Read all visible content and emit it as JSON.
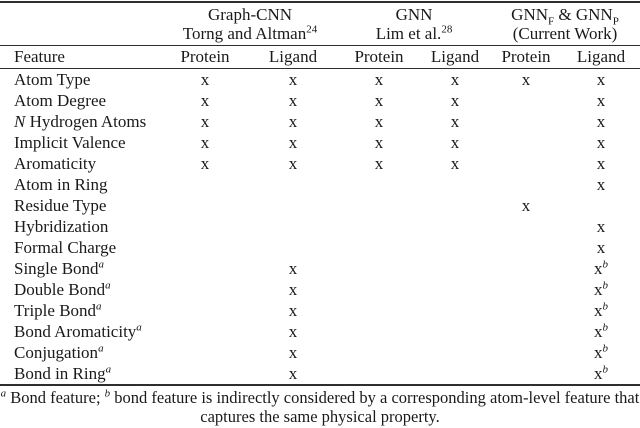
{
  "colors": {
    "background": "#ffffff",
    "text": "#1a1a1a",
    "rule": "#2e2e2e"
  },
  "table": {
    "groups": [
      {
        "title": "Graph-CNN",
        "subtitle": "Torng and Altman",
        "citation": "24"
      },
      {
        "title": "GNN",
        "subtitle": "Lim et al.",
        "citation": "28"
      },
      {
        "title_base1": "GNN",
        "title_sub1": "F",
        "title_join": " & ",
        "title_base2": "GNN",
        "title_sub2": "P",
        "subtitle": "(Current Work)"
      }
    ],
    "feature_header": "Feature",
    "columns": [
      "Protein",
      "Ligand",
      "Protein",
      "Ligand",
      "Protein",
      "Ligand"
    ],
    "rows": [
      {
        "feature": "Atom Type",
        "cells": [
          "x",
          "x",
          "x",
          "x",
          "x",
          "x"
        ]
      },
      {
        "feature": "Atom Degree",
        "cells": [
          "x",
          "x",
          "x",
          "x",
          "",
          "x"
        ]
      },
      {
        "feature_italic": "N",
        "feature": " Hydrogen Atoms",
        "cells": [
          "x",
          "x",
          "x",
          "x",
          "",
          "x"
        ]
      },
      {
        "feature": "Implicit Valence",
        "cells": [
          "x",
          "x",
          "x",
          "x",
          "",
          "x"
        ]
      },
      {
        "feature": "Aromaticity",
        "cells": [
          "x",
          "x",
          "x",
          "x",
          "",
          "x"
        ]
      },
      {
        "feature": "Atom in Ring",
        "cells": [
          "",
          "",
          "",
          "",
          "",
          "x"
        ]
      },
      {
        "feature": "Residue Type",
        "cells": [
          "",
          "",
          "",
          "",
          "x",
          ""
        ]
      },
      {
        "feature": "Hybridization",
        "cells": [
          "",
          "",
          "",
          "",
          "",
          "x"
        ]
      },
      {
        "feature": "Formal Charge",
        "cells": [
          "",
          "",
          "",
          "",
          "",
          "x"
        ]
      },
      {
        "feature": "Single Bond",
        "feature_sup": "a",
        "cells": [
          "",
          "x",
          "",
          "",
          "",
          "x^b"
        ]
      },
      {
        "feature": "Double Bond",
        "feature_sup": "a",
        "cells": [
          "",
          "x",
          "",
          "",
          "",
          "x^b"
        ]
      },
      {
        "feature": "Triple Bond",
        "feature_sup": "a",
        "cells": [
          "",
          "x",
          "",
          "",
          "",
          "x^b"
        ]
      },
      {
        "feature": "Bond Aromaticity",
        "feature_sup": "a",
        "cells": [
          "",
          "x",
          "",
          "",
          "",
          "x^b"
        ]
      },
      {
        "feature": "Conjugation",
        "feature_sup": "a",
        "cells": [
          "",
          "x",
          "",
          "",
          "",
          "x^b"
        ]
      },
      {
        "feature": "Bond in Ring",
        "feature_sup": "a",
        "cells": [
          "",
          "x",
          "",
          "",
          "",
          "x^b"
        ]
      }
    ]
  },
  "footnote": {
    "marker_a": "a",
    "text_a": "Bond feature;",
    "marker_b": "b",
    "text_b": "bond feature is indirectly considered by a corresponding atom-level feature that captures the same physical property."
  }
}
